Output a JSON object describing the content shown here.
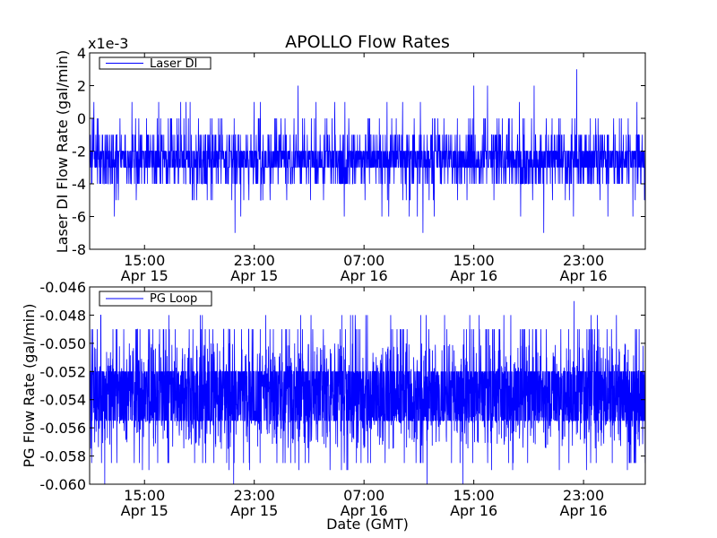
{
  "figure": {
    "title": "APOLLO Flow Rates",
    "xlabel": "Date (GMT)"
  },
  "chart_data": [
    {
      "type": "line",
      "ylabel": "Laser DI Flow Rate (gal/min)",
      "y_multiplier_label": "x1e-3",
      "ylim": [
        -8,
        4
      ],
      "yticks": [
        -8,
        -6,
        -4,
        -2,
        0,
        2,
        4
      ],
      "ytick_labels": [
        "-8",
        "-6",
        "-4",
        "-2",
        "0",
        "2",
        "4"
      ],
      "xlim_hours": [
        0,
        40.5
      ],
      "xticks_hours": [
        4,
        12,
        20,
        28,
        36
      ],
      "xtick_labels": [
        [
          "15:00",
          "Apr 15"
        ],
        [
          "23:00",
          "Apr 15"
        ],
        [
          "07:00",
          "Apr 16"
        ],
        [
          "15:00",
          "Apr 16"
        ],
        [
          "23:00",
          "Apr 16"
        ]
      ],
      "legend": {
        "label": "Laser DI",
        "location": "upper-left"
      },
      "series": [
        {
          "name": "Laser DI",
          "color": "#0000ff",
          "baseline": -2.5,
          "band": [
            -3,
            -2
          ],
          "noise_levels": [
            -4,
            -1,
            0,
            -5,
            1,
            -6
          ],
          "spikes": [
            {
              "x": 10.6,
              "y": -7
            },
            {
              "x": 15.2,
              "y": 2
            },
            {
              "x": 24.3,
              "y": -7
            },
            {
              "x": 28.0,
              "y": 2
            },
            {
              "x": 29.0,
              "y": 2
            },
            {
              "x": 32.4,
              "y": 2
            },
            {
              "x": 33.1,
              "y": -7
            },
            {
              "x": 35.5,
              "y": 3
            },
            {
              "x": 39.9,
              "y": 1
            },
            {
              "x": 39.6,
              "y": -6
            }
          ]
        }
      ]
    },
    {
      "type": "line",
      "ylabel": "PG Flow Rate (gal/min)",
      "ylim": [
        -0.06,
        -0.046
      ],
      "yticks": [
        -0.06,
        -0.058,
        -0.056,
        -0.054,
        -0.052,
        -0.05,
        -0.048,
        -0.046
      ],
      "ytick_labels": [
        "-0.060",
        "-0.058",
        "-0.056",
        "-0.054",
        "-0.052",
        "-0.050",
        "-0.048",
        "-0.046"
      ],
      "xlim_hours": [
        0,
        40.5
      ],
      "xticks_hours": [
        4,
        12,
        20,
        28,
        36
      ],
      "xtick_labels": [
        [
          "15:00",
          "Apr 15"
        ],
        [
          "23:00",
          "Apr 15"
        ],
        [
          "07:00",
          "Apr 16"
        ],
        [
          "15:00",
          "Apr 16"
        ],
        [
          "23:00",
          "Apr 16"
        ]
      ],
      "legend": {
        "label": "PG Loop",
        "location": "upper-left"
      },
      "series": [
        {
          "name": "PG Loop",
          "color": "#0000ff",
          "baseline": -0.0538,
          "band": [
            -0.0555,
            -0.052
          ],
          "noise_levels": [
            -0.0575,
            -0.05,
            -0.049,
            -0.0585,
            -0.048,
            -0.059
          ],
          "spikes": [
            {
              "x": 1.1,
              "y": -0.06
            },
            {
              "x": 10.5,
              "y": -0.06
            },
            {
              "x": 24.6,
              "y": -0.06
            },
            {
              "x": 27.2,
              "y": -0.06
            },
            {
              "x": 35.3,
              "y": -0.047
            },
            {
              "x": 30.7,
              "y": -0.048
            },
            {
              "x": 39.2,
              "y": -0.059
            }
          ]
        }
      ]
    }
  ]
}
